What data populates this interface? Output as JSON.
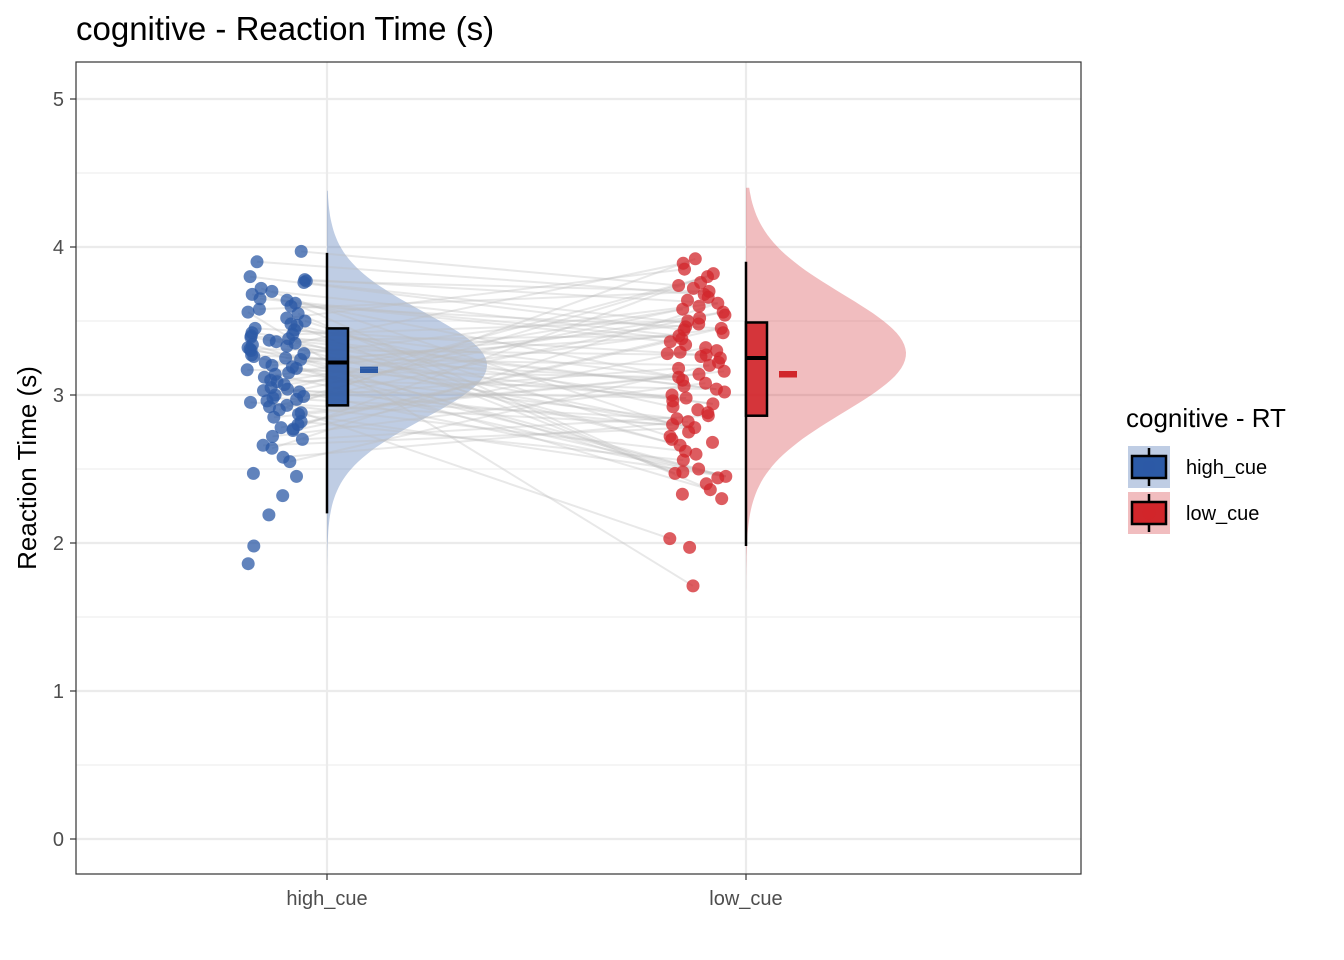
{
  "chart_data": {
    "type": "raincloud",
    "title": "cognitive  - Reaction Time (s)",
    "xlabel": "",
    "ylabel": "Reaction Time (s)",
    "ylim": [
      -0.25,
      5.25
    ],
    "yticks": [
      "0",
      "1",
      "2",
      "3",
      "4",
      "5"
    ],
    "categories": [
      "high_cue",
      "low_cue"
    ],
    "grid": true,
    "legend": {
      "title": "cognitive  - RT",
      "position": "right",
      "entries": [
        "high_cue",
        "low_cue"
      ]
    },
    "colors": {
      "high_cue": "#2c5aa6",
      "low_cue": "#d1262b",
      "paired_lines": "#bdbdbd"
    },
    "series": [
      {
        "name": "high_cue",
        "box": {
          "min": 2.2,
          "q1": 2.93,
          "median": 3.22,
          "q3": 3.45,
          "max": 3.96
        },
        "mean": 3.17,
        "mean_ci": [
          3.155,
          3.185
        ],
        "density": {
          "mean": 3.2,
          "sd": 0.36,
          "range": [
            1.45,
            4.38
          ]
        },
        "points": [
          3.97,
          3.9,
          3.8,
          3.78,
          3.77,
          3.76,
          3.72,
          3.7,
          3.68,
          3.65,
          3.64,
          3.62,
          3.6,
          3.58,
          3.56,
          3.55,
          3.52,
          3.5,
          3.48,
          3.47,
          3.45,
          3.44,
          3.42,
          3.41,
          3.4,
          3.39,
          3.38,
          3.37,
          3.36,
          3.35,
          3.34,
          3.33,
          3.32,
          3.31,
          3.3,
          3.28,
          3.27,
          3.26,
          3.25,
          3.24,
          3.22,
          3.2,
          3.19,
          3.18,
          3.17,
          3.15,
          3.14,
          3.12,
          3.1,
          3.09,
          3.07,
          3.05,
          3.04,
          3.03,
          3.02,
          3.0,
          2.99,
          2.98,
          2.97,
          2.96,
          2.95,
          2.93,
          2.92,
          2.9,
          2.88,
          2.87,
          2.85,
          2.82,
          2.8,
          2.78,
          2.77,
          2.76,
          2.72,
          2.7,
          2.66,
          2.64,
          2.58,
          2.55,
          2.47,
          2.45,
          2.32,
          2.19,
          1.98,
          1.86
        ]
      },
      {
        "name": "low_cue",
        "box": {
          "min": 1.98,
          "q1": 2.86,
          "median": 3.25,
          "q3": 3.49,
          "max": 3.9
        },
        "mean": 3.14,
        "mean_ci": [
          3.125,
          3.155
        ],
        "density": {
          "mean": 3.28,
          "sd": 0.4,
          "range": [
            1.22,
            4.4
          ]
        },
        "points": [
          3.92,
          3.89,
          3.85,
          3.82,
          3.8,
          3.76,
          3.74,
          3.72,
          3.7,
          3.68,
          3.66,
          3.64,
          3.62,
          3.6,
          3.58,
          3.56,
          3.54,
          3.52,
          3.5,
          3.48,
          3.46,
          3.45,
          3.44,
          3.42,
          3.4,
          3.38,
          3.36,
          3.34,
          3.32,
          3.3,
          3.29,
          3.28,
          3.27,
          3.26,
          3.25,
          3.22,
          3.2,
          3.18,
          3.16,
          3.14,
          3.12,
          3.1,
          3.08,
          3.06,
          3.04,
          3.02,
          3.0,
          2.98,
          2.96,
          2.94,
          2.92,
          2.9,
          2.88,
          2.86,
          2.84,
          2.82,
          2.8,
          2.78,
          2.75,
          2.72,
          2.7,
          2.68,
          2.66,
          2.62,
          2.6,
          2.56,
          2.5,
          2.48,
          2.47,
          2.45,
          2.44,
          2.4,
          2.36,
          2.33,
          2.3,
          2.03,
          1.97,
          1.71
        ]
      }
    ]
  }
}
